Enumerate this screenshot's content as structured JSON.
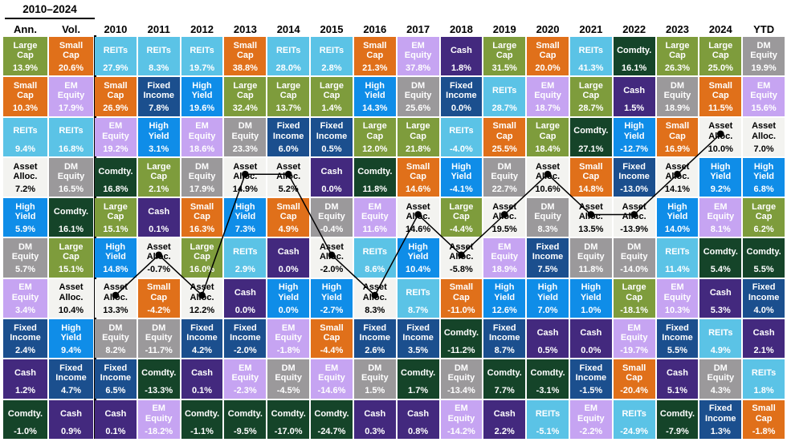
{
  "chart_data": {
    "type": "heatmap",
    "title": "Asset class annual returns quilt",
    "group_header": "2010–2024",
    "grid": "off",
    "colors": {
      "Large Cap": {
        "bg": "#7E9C3C",
        "fg": "#FFFFFF"
      },
      "Small Cap": {
        "bg": "#E0701A",
        "fg": "#FFFFFF"
      },
      "REITs": {
        "bg": "#5BC3E6",
        "fg": "#FFFFFF"
      },
      "EM Equity": {
        "bg": "#C6A4F2",
        "fg": "#FFFFFF"
      },
      "DM Equity": {
        "bg": "#9B999B",
        "fg": "#FFFFFF"
      },
      "High Yield": {
        "bg": "#0F8DE8",
        "fg": "#FFFFFF"
      },
      "Fixed Income": {
        "bg": "#1B4F8E",
        "fg": "#FFFFFF"
      },
      "Cash": {
        "bg": "#43297E",
        "fg": "#FFFFFF"
      },
      "Comdty.": {
        "bg": "#154429",
        "fg": "#FFFFFF"
      },
      "Asset Alloc.": {
        "bg": "#F3F3F0",
        "fg": "#000000"
      }
    },
    "columns": [
      {
        "label": "Ann.",
        "cells": [
          [
            "Large Cap",
            "13.9%"
          ],
          [
            "Small Cap",
            "10.3%"
          ],
          [
            "REITs",
            "9.4%"
          ],
          [
            "Asset Alloc.",
            "7.2%"
          ],
          [
            "High Yield",
            "5.9%"
          ],
          [
            "DM Equity",
            "5.7%"
          ],
          [
            "EM Equity",
            "3.4%"
          ],
          [
            "Fixed Income",
            "2.4%"
          ],
          [
            "Cash",
            "1.2%"
          ],
          [
            "Comdty.",
            "-1.0%"
          ]
        ]
      },
      {
        "label": "Vol.",
        "cells": [
          [
            "Small Cap",
            "20.6%"
          ],
          [
            "EM Equity",
            "17.9%"
          ],
          [
            "REITs",
            "16.8%"
          ],
          [
            "DM Equity",
            "16.5%"
          ],
          [
            "Comdty.",
            "16.1%"
          ],
          [
            "Large Cap",
            "15.1%"
          ],
          [
            "Asset Alloc.",
            "10.4%"
          ],
          [
            "High Yield",
            "9.4%"
          ],
          [
            "Fixed Income",
            "4.7%"
          ],
          [
            "Cash",
            "0.9%"
          ]
        ]
      },
      {
        "label": "2010",
        "cells": [
          [
            "REITs",
            "27.9%"
          ],
          [
            "Small Cap",
            "26.9%"
          ],
          [
            "EM Equity",
            "19.2%"
          ],
          [
            "Comdty.",
            "16.8%"
          ],
          [
            "Large Cap",
            "15.1%"
          ],
          [
            "High Yield",
            "14.8%"
          ],
          [
            "Asset Alloc.",
            "13.3%"
          ],
          [
            "DM Equity",
            "8.2%"
          ],
          [
            "Fixed Income",
            "6.5%"
          ],
          [
            "Cash",
            "0.1%"
          ]
        ]
      },
      {
        "label": "2011",
        "cells": [
          [
            "REITs",
            "8.3%"
          ],
          [
            "Fixed Income",
            "7.8%"
          ],
          [
            "High Yield",
            "3.1%"
          ],
          [
            "Large Cap",
            "2.1%"
          ],
          [
            "Cash",
            "0.1%"
          ],
          [
            "Asset Alloc.",
            "-0.7%"
          ],
          [
            "Small Cap",
            "-4.2%"
          ],
          [
            "DM Equity",
            "-11.7%"
          ],
          [
            "Comdty.",
            "-13.3%"
          ],
          [
            "EM Equity",
            "-18.2%"
          ]
        ]
      },
      {
        "label": "2012",
        "cells": [
          [
            "REITs",
            "19.7%"
          ],
          [
            "High Yield",
            "19.6%"
          ],
          [
            "EM Equity",
            "18.6%"
          ],
          [
            "DM Equity",
            "17.9%"
          ],
          [
            "Small Cap",
            "16.3%"
          ],
          [
            "Large Cap",
            "16.0%"
          ],
          [
            "Asset Alloc.",
            "12.2%"
          ],
          [
            "Fixed Income",
            "4.2%"
          ],
          [
            "Cash",
            "0.1%"
          ],
          [
            "Comdty.",
            "-1.1%"
          ]
        ]
      },
      {
        "label": "2013",
        "cells": [
          [
            "Small Cap",
            "38.8%"
          ],
          [
            "Large Cap",
            "32.4%"
          ],
          [
            "DM Equity",
            "23.3%"
          ],
          [
            "Asset Alloc.",
            "14.9%"
          ],
          [
            "High Yield",
            "7.3%"
          ],
          [
            "REITs",
            "2.9%"
          ],
          [
            "Cash",
            "0.0%"
          ],
          [
            "Fixed Income",
            "-2.0%"
          ],
          [
            "EM Equity",
            "-2.3%"
          ],
          [
            "Comdty.",
            "-9.5%"
          ]
        ]
      },
      {
        "label": "2014",
        "cells": [
          [
            "REITs",
            "28.0%"
          ],
          [
            "Large Cap",
            "13.7%"
          ],
          [
            "Fixed Income",
            "6.0%"
          ],
          [
            "Asset Alloc.",
            "5.2%"
          ],
          [
            "Small Cap",
            "4.9%"
          ],
          [
            "Cash",
            "0.0%"
          ],
          [
            "High Yield",
            "0.0%"
          ],
          [
            "EM Equity",
            "-1.8%"
          ],
          [
            "DM Equity",
            "-4.5%"
          ],
          [
            "Comdty.",
            "-17.0%"
          ]
        ]
      },
      {
        "label": "2015",
        "cells": [
          [
            "REITs",
            "2.8%"
          ],
          [
            "Large Cap",
            "1.4%"
          ],
          [
            "Fixed Income",
            "0.5%"
          ],
          [
            "Cash",
            "0.0%"
          ],
          [
            "DM Equity",
            "-0.4%"
          ],
          [
            "Asset Alloc.",
            "-2.0%"
          ],
          [
            "High Yield",
            "-2.7%"
          ],
          [
            "Small Cap",
            "-4.4%"
          ],
          [
            "EM Equity",
            "-14.6%"
          ],
          [
            "Comdty.",
            "-24.7%"
          ]
        ]
      },
      {
        "label": "2016",
        "cells": [
          [
            "Small Cap",
            "21.3%"
          ],
          [
            "High Yield",
            "14.3%"
          ],
          [
            "Large Cap",
            "12.0%"
          ],
          [
            "Comdty.",
            "11.8%"
          ],
          [
            "EM Equity",
            "11.6%"
          ],
          [
            "REITs",
            "8.6%"
          ],
          [
            "Asset Alloc.",
            "8.3%"
          ],
          [
            "Fixed Income",
            "2.6%"
          ],
          [
            "DM Equity",
            "1.5%"
          ],
          [
            "Cash",
            "0.3%"
          ]
        ]
      },
      {
        "label": "2017",
        "cells": [
          [
            "EM Equity",
            "37.8%"
          ],
          [
            "DM Equity",
            "25.6%"
          ],
          [
            "Large Cap",
            "21.8%"
          ],
          [
            "Small Cap",
            "14.6%"
          ],
          [
            "Asset Alloc.",
            "14.6%"
          ],
          [
            "High Yield",
            "10.4%"
          ],
          [
            "REITs",
            "8.7%"
          ],
          [
            "Fixed Income",
            "3.5%"
          ],
          [
            "Comdty.",
            "1.7%"
          ],
          [
            "Cash",
            "0.8%"
          ]
        ]
      },
      {
        "label": "2018",
        "cells": [
          [
            "Cash",
            "1.8%"
          ],
          [
            "Fixed Income",
            "0.0%"
          ],
          [
            "REITs",
            "-4.0%"
          ],
          [
            "High Yield",
            "-4.1%"
          ],
          [
            "Large Cap",
            "-4.4%"
          ],
          [
            "Asset Alloc.",
            "-5.8%"
          ],
          [
            "Small Cap",
            "-11.0%"
          ],
          [
            "Comdty.",
            "-11.2%"
          ],
          [
            "DM Equity",
            "-13.4%"
          ],
          [
            "EM Equity",
            "-14.2%"
          ]
        ]
      },
      {
        "label": "2019",
        "cells": [
          [
            "Large Cap",
            "31.5%"
          ],
          [
            "REITs",
            "28.7%"
          ],
          [
            "Small Cap",
            "25.5%"
          ],
          [
            "DM Equity",
            "22.7%"
          ],
          [
            "Asset Alloc.",
            "19.5%"
          ],
          [
            "EM Equity",
            "18.9%"
          ],
          [
            "High Yield",
            "12.6%"
          ],
          [
            "Fixed Income",
            "8.7%"
          ],
          [
            "Comdty.",
            "7.7%"
          ],
          [
            "Cash",
            "2.2%"
          ]
        ]
      },
      {
        "label": "2020",
        "cells": [
          [
            "Small Cap",
            "20.0%"
          ],
          [
            "EM Equity",
            "18.7%"
          ],
          [
            "Large Cap",
            "18.4%"
          ],
          [
            "Asset Alloc.",
            "10.6%"
          ],
          [
            "DM Equity",
            "8.3%"
          ],
          [
            "Fixed Income",
            "7.5%"
          ],
          [
            "High Yield",
            "7.0%"
          ],
          [
            "Cash",
            "0.5%"
          ],
          [
            "Comdty.",
            "-3.1%"
          ],
          [
            "REITs",
            "-5.1%"
          ]
        ]
      },
      {
        "label": "2021",
        "cells": [
          [
            "REITs",
            "41.3%"
          ],
          [
            "Large Cap",
            "28.7%"
          ],
          [
            "Comdty.",
            "27.1%"
          ],
          [
            "Small Cap",
            "14.8%"
          ],
          [
            "Asset Alloc.",
            "13.5%"
          ],
          [
            "DM Equity",
            "11.8%"
          ],
          [
            "High Yield",
            "1.0%"
          ],
          [
            "Cash",
            "0.0%"
          ],
          [
            "Fixed Income",
            "-1.5%"
          ],
          [
            "EM Equity",
            "-2.2%"
          ]
        ]
      },
      {
        "label": "2022",
        "cells": [
          [
            "Comdty.",
            "16.1%"
          ],
          [
            "Cash",
            "1.5%"
          ],
          [
            "High Yield",
            "-12.7%"
          ],
          [
            "Fixed Income",
            "-13.0%"
          ],
          [
            "Asset Alloc.",
            "-13.9%"
          ],
          [
            "DM Equity",
            "-14.0%"
          ],
          [
            "Large Cap",
            "-18.1%"
          ],
          [
            "EM Equity",
            "-19.7%"
          ],
          [
            "Small Cap",
            "-20.4%"
          ],
          [
            "REITs",
            "-24.9%"
          ]
        ]
      },
      {
        "label": "2023",
        "cells": [
          [
            "Large Cap",
            "26.3%"
          ],
          [
            "DM Equity",
            "18.9%"
          ],
          [
            "Small Cap",
            "16.9%"
          ],
          [
            "Asset Alloc.",
            "14.1%"
          ],
          [
            "High Yield",
            "14.0%"
          ],
          [
            "REITs",
            "11.4%"
          ],
          [
            "EM Equity",
            "10.3%"
          ],
          [
            "Fixed Income",
            "5.5%"
          ],
          [
            "Cash",
            "5.1%"
          ],
          [
            "Comdty.",
            "-7.9%"
          ]
        ]
      },
      {
        "label": "2024",
        "cells": [
          [
            "Large Cap",
            "25.0%"
          ],
          [
            "Small Cap",
            "11.5%"
          ],
          [
            "Asset Alloc.",
            "10.0%"
          ],
          [
            "High Yield",
            "9.2%"
          ],
          [
            "EM Equity",
            "8.1%"
          ],
          [
            "Comdty.",
            "5.4%"
          ],
          [
            "Cash",
            "5.3%"
          ],
          [
            "REITs",
            "4.9%"
          ],
          [
            "DM Equity",
            "4.3%"
          ],
          [
            "Fixed Income",
            "1.3%"
          ]
        ]
      },
      {
        "label": "YTD",
        "cells": [
          [
            "DM Equity",
            "19.9%"
          ],
          [
            "EM Equity",
            "15.6%"
          ],
          [
            "Asset Alloc.",
            "7.0%"
          ],
          [
            "High Yield",
            "6.8%"
          ],
          [
            "Large Cap",
            "6.2%"
          ],
          [
            "Comdty.",
            "5.5%"
          ],
          [
            "Fixed Income",
            "4.0%"
          ],
          [
            "Cash",
            "2.1%"
          ],
          [
            "REITs",
            "1.8%"
          ],
          [
            "Small Cap",
            "-1.8%"
          ]
        ]
      }
    ],
    "overlay_line": {
      "asset": "Asset Alloc.",
      "columns": [
        "2010",
        "2011",
        "2012",
        "2013",
        "2014",
        "2015",
        "2016",
        "2017",
        "2018",
        "2019",
        "2020",
        "2021",
        "2022",
        "2023",
        "2024"
      ],
      "color": "#000000",
      "marker": "dot"
    }
  }
}
